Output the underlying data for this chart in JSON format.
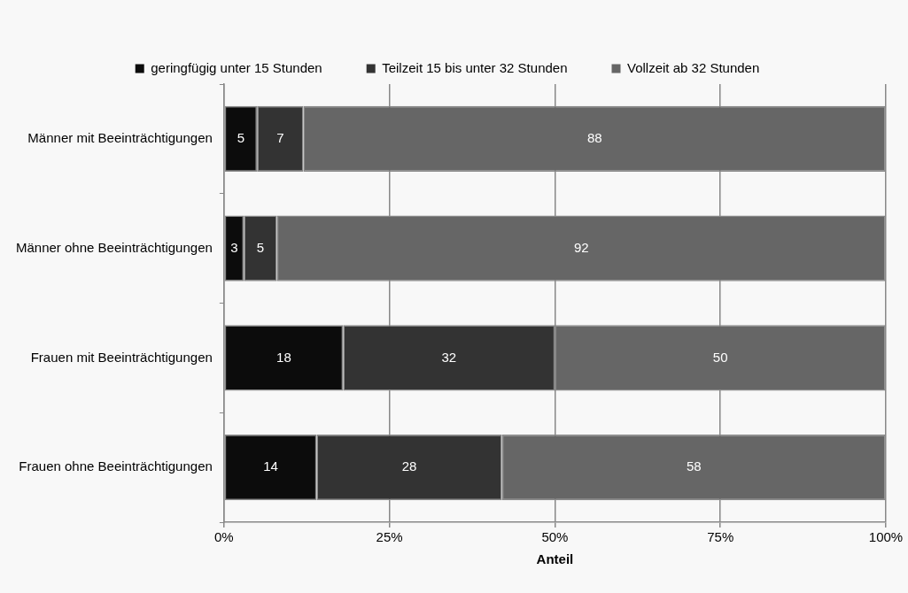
{
  "chart_data": {
    "type": "bar",
    "orientation": "horizontal",
    "stacked": true,
    "xlabel": "Anteil",
    "categories": [
      "Männer mit Beeinträchtigungen",
      "Männer ohne Beeinträchtigungen",
      "Frauen mit Beeinträchtigungen",
      "Frauen ohne Beeinträchtigungen"
    ],
    "series": [
      {
        "name": "geringfügig unter 15 Stunden",
        "color": "#0c0c0c",
        "values": [
          5,
          3,
          18,
          14
        ]
      },
      {
        "name": "Teilzeit 15 bis unter 32 Stunden",
        "color": "#333333",
        "values": [
          7,
          5,
          32,
          28
        ]
      },
      {
        "name": "Vollzeit ab 32 Stunden",
        "color": "#666666",
        "values": [
          88,
          92,
          50,
          58
        ]
      }
    ],
    "xlim": [
      0,
      100
    ],
    "xticks": [
      {
        "value": 0,
        "label": "0%"
      },
      {
        "value": 25,
        "label": "25%"
      },
      {
        "value": 50,
        "label": "50%"
      },
      {
        "value": 75,
        "label": "75%"
      },
      {
        "value": 100,
        "label": "100%"
      }
    ],
    "grid": "x",
    "legend": "top",
    "data_labels": true
  }
}
